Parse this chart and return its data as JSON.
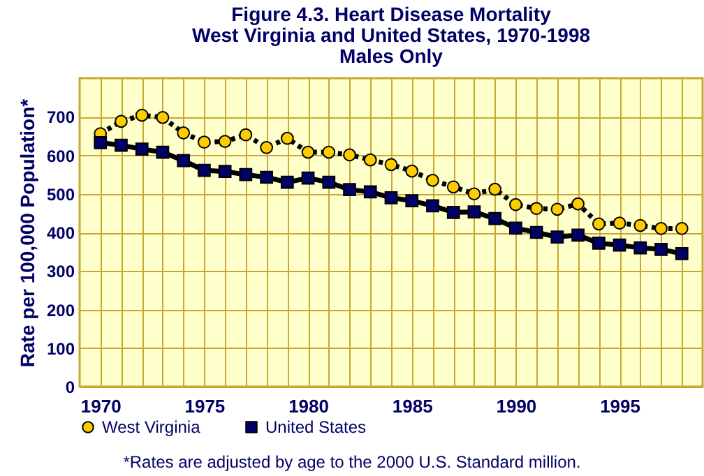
{
  "chart_data": {
    "type": "line",
    "title": "Figure 4.3. Heart Disease Mortality",
    "subtitle": "West Virginia and United States, 1970-1998\nMales Only",
    "ylabel": "Rate per 100,000 Population*",
    "annotations": [
      "*Rates are adjusted by age to the 2000 U.S. Standard million."
    ],
    "x": [
      1970,
      1971,
      1972,
      1973,
      1974,
      1975,
      1976,
      1977,
      1978,
      1979,
      1980,
      1981,
      1982,
      1983,
      1984,
      1985,
      1986,
      1987,
      1988,
      1989,
      1990,
      1991,
      1992,
      1993,
      1994,
      1995,
      1996,
      1997,
      1998
    ],
    "series": [
      {
        "name": "West Virginia",
        "color": "#ffcc00",
        "marker": "circle",
        "line_style": "dotted",
        "values": [
          656,
          688,
          704,
          698,
          658,
          634,
          636,
          653,
          620,
          644,
          608,
          608,
          601,
          588,
          576,
          559,
          535,
          518,
          500,
          512,
          472,
          462,
          460,
          474,
          422,
          424,
          418,
          410,
          410
        ]
      },
      {
        "name": "United States",
        "color": "#000066",
        "marker": "square",
        "line_style": "solid",
        "values": [
          633,
          626,
          616,
          608,
          586,
          561,
          558,
          550,
          543,
          530,
          541,
          530,
          511,
          505,
          490,
          482,
          469,
          452,
          453,
          436,
          411,
          400,
          388,
          393,
          372,
          367,
          360,
          356,
          345
        ]
      }
    ],
    "xlim": [
      1969,
      1999
    ],
    "xticks": [
      1970,
      {
        "value": 1971,
        "label": null
      },
      {
        "value": 1972,
        "label": null
      },
      {
        "value": 1973,
        "label": null
      },
      {
        "value": 1974,
        "label": null
      },
      1975,
      {
        "value": 1976,
        "label": null
      },
      {
        "value": 1977,
        "label": null
      },
      {
        "value": 1978,
        "label": null
      },
      {
        "value": 1979,
        "label": null
      },
      1980,
      {
        "value": 1981,
        "label": null
      },
      {
        "value": 1982,
        "label": null
      },
      {
        "value": 1983,
        "label": null
      },
      {
        "value": 1984,
        "label": null
      },
      1985,
      {
        "value": 1986,
        "label": null
      },
      {
        "value": 1987,
        "label": null
      },
      {
        "value": 1988,
        "label": null
      },
      {
        "value": 1989,
        "label": null
      },
      1990,
      {
        "value": 1991,
        "label": null
      },
      {
        "value": 1992,
        "label": null
      },
      {
        "value": 1993,
        "label": null
      },
      {
        "value": 1994,
        "label": null
      },
      1995,
      {
        "value": 1996,
        "label": null
      },
      {
        "value": 1997,
        "label": null
      },
      {
        "value": 1998,
        "label": null
      }
    ],
    "ylim": [
      0,
      800
    ],
    "yticks": [
      0,
      100,
      200,
      300,
      400,
      500,
      600,
      700
    ],
    "grid": true,
    "legend": "bottom"
  }
}
